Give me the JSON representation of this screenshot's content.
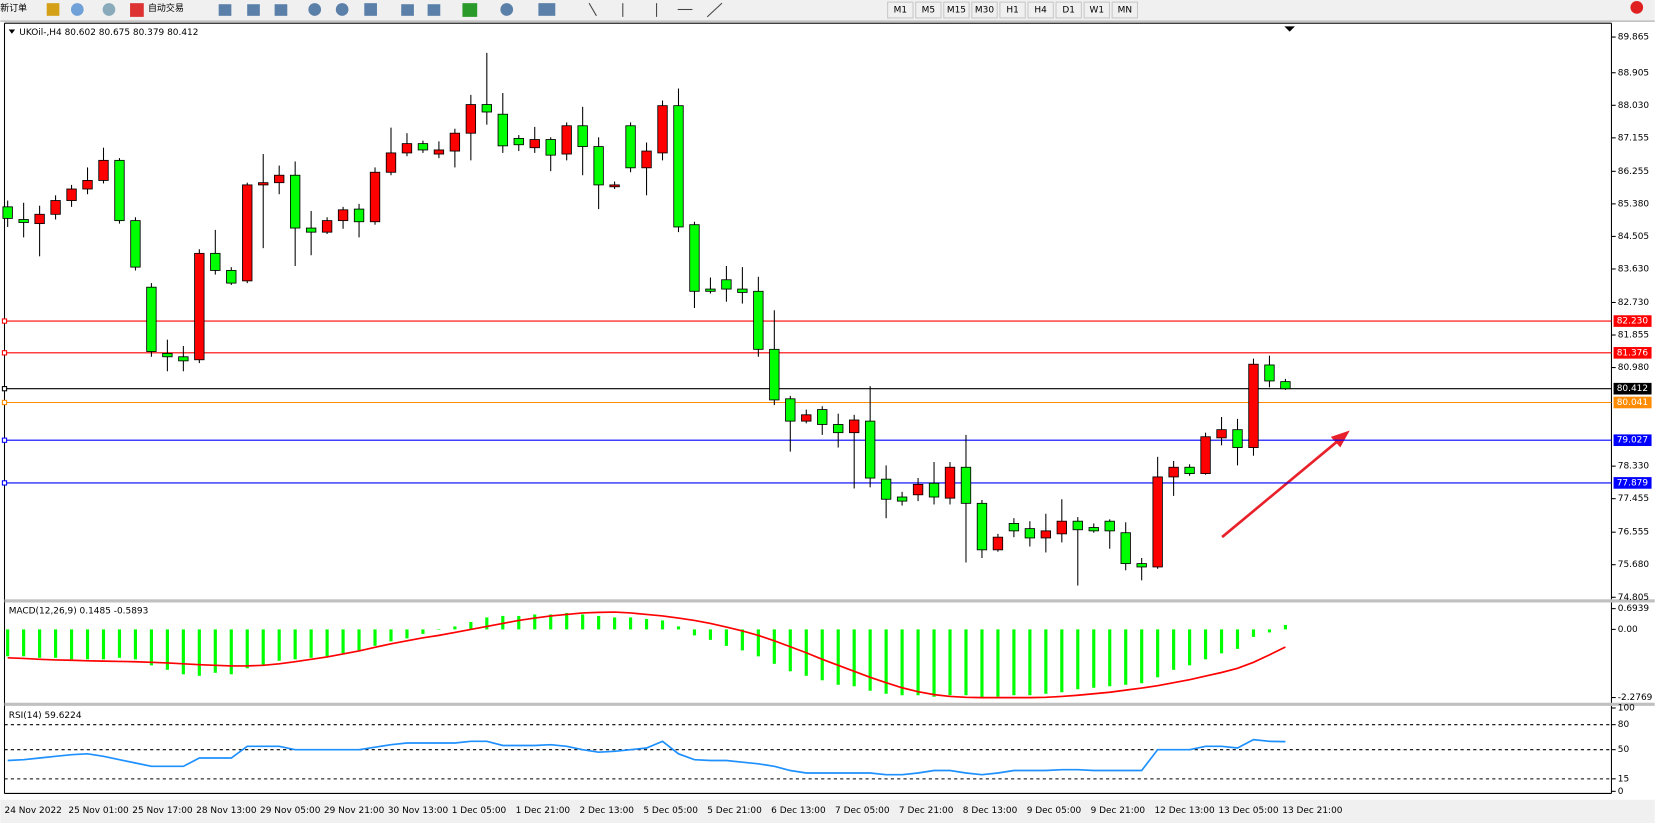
{
  "toolbar": {
    "new_order": "新订单",
    "auto_trading": "自动交易",
    "timeframes": [
      "M1",
      "M5",
      "M15",
      "M30",
      "H1",
      "H4",
      "D1",
      "W1",
      "MN"
    ]
  },
  "chart_data": [
    {
      "type": "candlestick",
      "title": "UKOil-,H4 80.602 80.675 80.379 80.412",
      "categories": [
        "24 Nov 2022",
        null,
        null,
        null,
        "25 Nov 01:00",
        null,
        null,
        null,
        "25 Nov 17:00",
        null,
        null,
        null,
        "28 Nov 13:00",
        null,
        null,
        null,
        "29 Nov 05:00",
        null,
        null,
        null,
        "29 Nov 21:00",
        null,
        null,
        null,
        "30 Nov 13:00",
        null,
        null,
        null,
        "1 Dec 05:00",
        null,
        null,
        null,
        "1 Dec 21:00",
        null,
        null,
        null,
        "2 Dec 13:00",
        null,
        null,
        null,
        "5 Dec 05:00",
        null,
        null,
        null,
        "5 Dec 21:00",
        null,
        null,
        null,
        "6 Dec 13:00",
        null,
        null,
        null,
        "7 Dec 05:00",
        null,
        null,
        null,
        "7 Dec 21:00",
        null,
        null,
        null,
        "8 Dec 13:00",
        null,
        null,
        null,
        "9 Dec 05:00",
        null,
        null,
        null,
        "9 Dec 21:00",
        null,
        null,
        null,
        "12 Dec 13:00",
        null,
        null,
        null,
        "13 Dec 05:00",
        null,
        null,
        null,
        "13 Dec 21:00"
      ],
      "open": [
        85.3,
        84.96,
        84.85,
        85.1,
        85.47,
        85.78,
        86.01,
        86.55,
        84.93,
        83.14,
        81.36,
        81.27,
        81.19,
        84.05,
        83.59,
        83.31,
        85.89,
        85.95,
        86.15,
        84.73,
        84.62,
        84.93,
        85.24,
        84.9,
        86.23,
        86.75,
        87.0,
        86.72,
        86.8,
        87.28,
        88.05,
        87.79,
        87.14,
        86.89,
        87.11,
        86.72,
        87.48,
        86.92,
        85.84,
        87.48,
        86.35,
        86.75,
        88.02,
        84.82,
        83.09,
        83.34,
        83.09,
        83.03,
        81.47,
        80.14,
        79.54,
        79.85,
        79.45,
        79.23,
        79.54,
        77.98,
        77.5,
        77.56,
        77.87,
        77.47,
        78.3,
        77.33,
        76.08,
        76.79,
        76.65,
        76.4,
        76.51,
        76.85,
        76.68,
        76.85,
        76.54,
        75.71,
        75.62,
        78.04,
        78.3,
        78.13,
        79.09,
        79.31,
        78.83,
        81.05,
        80.602
      ],
      "high": [
        85.47,
        85.41,
        85.33,
        85.61,
        85.89,
        86.36,
        86.89,
        86.61,
        85.02,
        83.25,
        81.73,
        81.56,
        84.16,
        84.68,
        83.68,
        85.95,
        86.72,
        86.41,
        86.52,
        85.19,
        85.02,
        85.3,
        85.38,
        86.36,
        87.43,
        87.28,
        87.08,
        87.06,
        87.4,
        88.31,
        89.44,
        88.36,
        87.23,
        87.45,
        87.17,
        87.57,
        87.99,
        87.17,
        85.98,
        87.57,
        87.03,
        88.16,
        88.48,
        84.9,
        83.4,
        83.71,
        83.68,
        83.42,
        82.52,
        80.22,
        79.85,
        79.94,
        79.74,
        79.71,
        80.48,
        78.35,
        77.64,
        78.01,
        78.44,
        78.44,
        79.17,
        77.42,
        76.51,
        76.93,
        76.85,
        77.05,
        77.44,
        76.96,
        76.79,
        76.9,
        76.82,
        75.86,
        78.58,
        78.47,
        78.38,
        79.23,
        79.65,
        79.6,
        81.22,
        81.3,
        80.675
      ],
      "low": [
        84.76,
        84.48,
        83.97,
        84.96,
        85.3,
        85.64,
        85.93,
        84.85,
        83.59,
        81.27,
        80.88,
        80.88,
        81.1,
        83.48,
        83.2,
        83.25,
        84.19,
        85.64,
        83.71,
        84.0,
        84.57,
        84.71,
        84.48,
        84.82,
        86.15,
        86.66,
        86.75,
        86.61,
        86.36,
        86.55,
        87.51,
        86.75,
        86.8,
        86.75,
        86.26,
        86.55,
        86.15,
        85.24,
        85.78,
        86.23,
        85.61,
        86.55,
        84.62,
        82.58,
        82.97,
        82.75,
        82.7,
        81.27,
        79.97,
        78.72,
        79.48,
        79.17,
        78.83,
        77.73,
        77.76,
        76.93,
        77.27,
        77.39,
        77.3,
        77.3,
        75.74,
        75.86,
        76.03,
        76.42,
        76.17,
        76.01,
        76.28,
        75.12,
        76.54,
        76.11,
        75.53,
        75.26,
        75.57,
        77.53,
        78.07,
        78.1,
        78.89,
        78.35,
        78.61,
        80.45,
        80.379
      ],
      "close": [
        84.99,
        84.88,
        85.1,
        85.47,
        85.78,
        86.01,
        86.55,
        84.93,
        83.68,
        81.41,
        81.27,
        81.16,
        84.05,
        83.59,
        83.25,
        85.89,
        85.95,
        86.15,
        84.73,
        84.62,
        84.93,
        85.22,
        84.9,
        86.23,
        86.75,
        87.0,
        86.83,
        86.83,
        87.28,
        88.05,
        87.85,
        86.94,
        86.97,
        87.11,
        86.69,
        87.48,
        86.92,
        85.89,
        85.89,
        86.35,
        86.8,
        88.02,
        84.76,
        83.03,
        83.03,
        83.09,
        83.0,
        81.47,
        80.11,
        79.54,
        79.71,
        79.45,
        79.23,
        79.57,
        78.01,
        77.44,
        77.39,
        77.84,
        77.5,
        78.3,
        77.33,
        76.08,
        76.42,
        76.59,
        76.4,
        76.59,
        76.85,
        76.62,
        76.59,
        76.59,
        75.71,
        75.62,
        78.04,
        78.3,
        78.13,
        79.12,
        79.31,
        78.83,
        81.07,
        80.62,
        80.412
      ],
      "up_color": "#ff0000",
      "down_color": "#00ff00",
      "ylim": [
        74.75,
        90.18
      ],
      "yticks": [
        89.865,
        88.905,
        {
          "value": 88.03,
          "label": "88.030"
        },
        87.155,
        86.255,
        {
          "value": 85.38,
          "label": "85.380"
        },
        84.505,
        {
          "value": 83.63,
          "label": "83.630"
        },
        {
          "value": 82.73,
          "label": "82.730"
        },
        81.855,
        {
          "value": 80.98,
          "label": "80.980"
        },
        {
          "value": 78.33,
          "label": "78.330"
        },
        77.455,
        76.555,
        {
          "value": 75.68,
          "label": "75.680"
        },
        74.805
      ],
      "levels": [
        {
          "value": 82.23,
          "label": "82.230",
          "color": "#ff0000"
        },
        {
          "value": 81.376,
          "label": "81.376",
          "color": "#ff0000"
        },
        {
          "value": 80.412,
          "label": "80.412",
          "color": "#000000"
        },
        {
          "value": 80.041,
          "label": "80.041",
          "color": "#ff8c00"
        },
        {
          "value": 79.027,
          "label": "79.027",
          "color": "#0000ff"
        },
        {
          "value": 77.879,
          "label": "77.879",
          "color": "#0000ff"
        }
      ]
    },
    {
      "type": "macd",
      "title": "MACD(12,26,9) 0.1485 -0.5893",
      "series": [
        {
          "kind": "bar",
          "color": "#00ff00",
          "values": [
            -0.9,
            -0.9,
            -0.95,
            -0.95,
            -1.0,
            -1.0,
            -1.0,
            -0.95,
            -1.0,
            -1.2,
            -1.35,
            -1.5,
            -1.55,
            -1.45,
            -1.5,
            -1.3,
            -1.2,
            -1.05,
            -1.0,
            -0.95,
            -0.9,
            -0.8,
            -0.7,
            -0.55,
            -0.4,
            -0.3,
            -0.15,
            0.0,
            0.1,
            0.25,
            0.4,
            0.45,
            0.45,
            0.5,
            0.5,
            0.55,
            0.5,
            0.45,
            0.4,
            0.4,
            0.35,
            0.3,
            0.1,
            -0.2,
            -0.35,
            -0.55,
            -0.7,
            -0.9,
            -1.15,
            -1.4,
            -1.55,
            -1.7,
            -1.85,
            -1.9,
            -2.05,
            -2.15,
            -2.2,
            -2.2,
            -2.25,
            -2.2,
            -2.2,
            -2.3,
            -2.25,
            -2.2,
            -2.2,
            -2.15,
            -2.1,
            -2.0,
            -1.95,
            -1.9,
            -1.85,
            -1.8,
            -1.6,
            -1.35,
            -1.2,
            -1.0,
            -0.8,
            -0.65,
            -0.25,
            -0.1,
            0.1485
          ]
        },
        {
          "kind": "line",
          "color": "#ff0000",
          "values": [
            -0.95,
            -0.97,
            -1.0,
            -1.02,
            -1.03,
            -1.05,
            -1.06,
            -1.07,
            -1.08,
            -1.1,
            -1.12,
            -1.15,
            -1.18,
            -1.2,
            -1.22,
            -1.22,
            -1.2,
            -1.15,
            -1.08,
            -1.0,
            -0.92,
            -0.82,
            -0.72,
            -0.6,
            -0.48,
            -0.38,
            -0.28,
            -0.2,
            -0.1,
            0.0,
            0.1,
            0.2,
            0.3,
            0.38,
            0.45,
            0.5,
            0.55,
            0.57,
            0.58,
            0.55,
            0.5,
            0.45,
            0.38,
            0.3,
            0.2,
            0.08,
            -0.05,
            -0.2,
            -0.38,
            -0.58,
            -0.78,
            -1.0,
            -1.2,
            -1.4,
            -1.6,
            -1.78,
            -1.95,
            -2.08,
            -2.18,
            -2.24,
            -2.27,
            -2.28,
            -2.28,
            -2.28,
            -2.28,
            -2.27,
            -2.24,
            -2.2,
            -2.15,
            -2.1,
            -2.03,
            -1.96,
            -1.88,
            -1.78,
            -1.68,
            -1.56,
            -1.44,
            -1.3,
            -1.1,
            -0.85,
            -0.5893
          ]
        }
      ],
      "ylim": [
        -2.45,
        0.9
      ],
      "yticks": [
        0.6939,
        {
          "value": 0,
          "label": "0.00"
        },
        -2.2769
      ]
    },
    {
      "type": "rsi",
      "title": "RSI(14) 59.6224",
      "series": [
        {
          "kind": "line",
          "color": "#1e90ff",
          "values": [
            37,
            38,
            40,
            42,
            44,
            45,
            42,
            38,
            34,
            30,
            30,
            30,
            40,
            40,
            40,
            54,
            54,
            54,
            50,
            50,
            50,
            50,
            50,
            53,
            56,
            58,
            58,
            58,
            58,
            60,
            60,
            55,
            55,
            55,
            56,
            54,
            50,
            47,
            48,
            50,
            52,
            60,
            45,
            38,
            37,
            37,
            35,
            33,
            30,
            25,
            22,
            22,
            22,
            22,
            22,
            20,
            20,
            22,
            25,
            25,
            22,
            20,
            22,
            25,
            25,
            25,
            26,
            26,
            25,
            25,
            25,
            25,
            50,
            50,
            50,
            54,
            54,
            52,
            62,
            60,
            59.6224
          ]
        }
      ],
      "ylim": [
        0,
        100
      ],
      "yticks": [
        100,
        80,
        50,
        15,
        0
      ],
      "levels": [
        80,
        50,
        15
      ]
    }
  ]
}
